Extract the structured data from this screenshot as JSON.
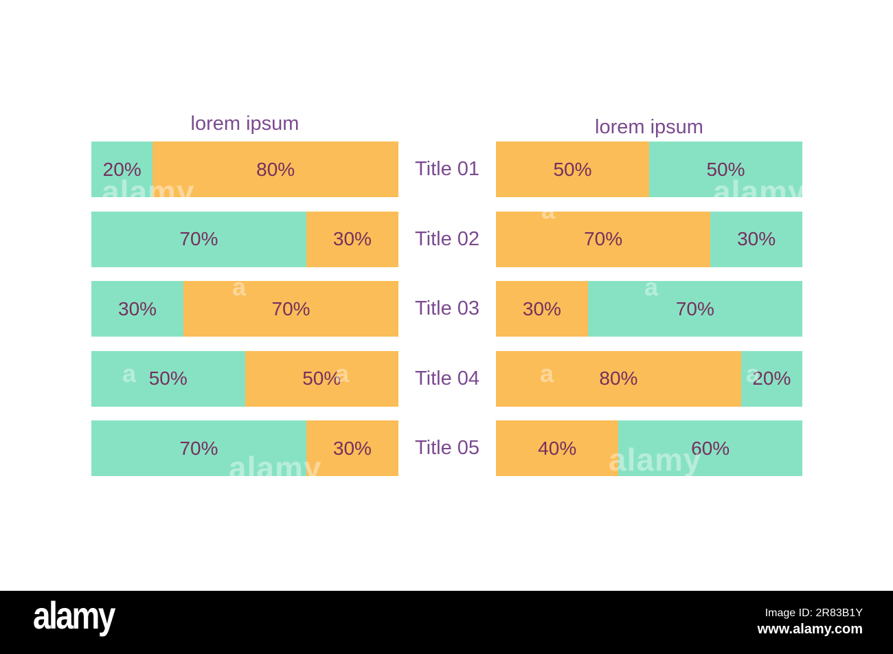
{
  "chart_data": [
    {
      "type": "bar",
      "orientation": "horizontal",
      "stacked": true,
      "title": "lorem ipsum",
      "unit": "%",
      "categories": [
        "Title 01",
        "Title 02",
        "Title 03",
        "Title 04",
        "Title 05"
      ],
      "series": [
        {
          "name": "teal",
          "color": "#87e2c3",
          "values": [
            20,
            70,
            30,
            50,
            70
          ]
        },
        {
          "name": "orange",
          "color": "#fbbd57",
          "values": [
            80,
            30,
            70,
            50,
            30
          ]
        }
      ],
      "legend": "none",
      "grid": false
    },
    {
      "type": "bar",
      "orientation": "horizontal",
      "stacked": true,
      "title": "lorem ipsum",
      "unit": "%",
      "categories": [
        "Title 01",
        "Title 02",
        "Title 03",
        "Title 04",
        "Title 05"
      ],
      "series": [
        {
          "name": "orange",
          "color": "#fbbd57",
          "values": [
            50,
            70,
            30,
            80,
            40
          ]
        },
        {
          "name": "teal",
          "color": "#87e2c3",
          "values": [
            50,
            30,
            70,
            20,
            60
          ]
        }
      ],
      "legend": "none",
      "grid": false
    }
  ],
  "colors": {
    "teal": "#87e2c3",
    "orange": "#fbbd57",
    "percent_text": "#76305e",
    "title_text": "#7b4a8f",
    "footer_background": "#000000",
    "footer_text": "#ffffff"
  },
  "watermark": {
    "text": "alamy",
    "short": "a"
  },
  "footer": {
    "logo": "alamy",
    "image_id": "Image ID: 2R83B1Y",
    "url": "www.alamy.com"
  }
}
